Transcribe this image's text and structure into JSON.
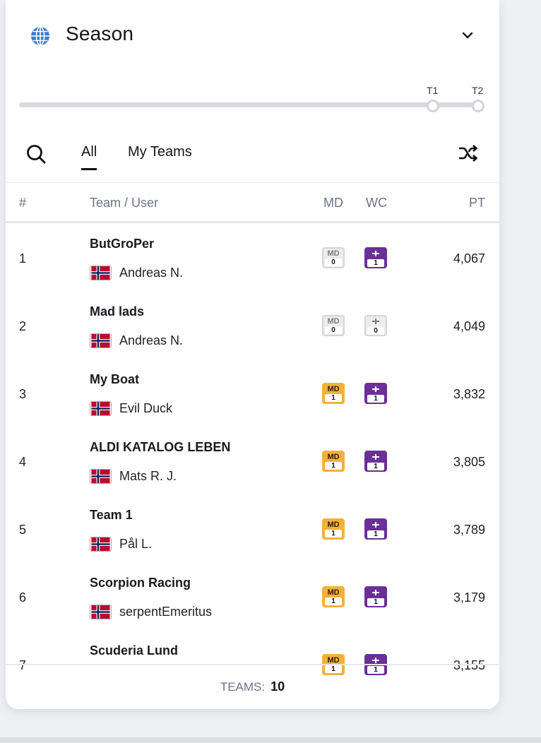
{
  "header": {
    "title": "Season",
    "globe_color": "#3e7bd6"
  },
  "slider": {
    "ticks": [
      "T1",
      "T2"
    ],
    "selected": "T2"
  },
  "tabs": [
    {
      "label": "All",
      "active": true
    },
    {
      "label": "My Teams",
      "active": false
    }
  ],
  "table": {
    "columns": {
      "rank": "#",
      "team": "Team / User",
      "md": "MD",
      "wc": "WC",
      "pt": "PT"
    },
    "chip_label_md": "MD",
    "rows": [
      {
        "rank": "1",
        "team": "ButGroPer",
        "user": "Andreas N.",
        "md": "0",
        "md_active": false,
        "wc": "1",
        "wc_active": true,
        "pt": "4,067"
      },
      {
        "rank": "2",
        "team": "Mad lads",
        "user": "Andreas N.",
        "md": "0",
        "md_active": false,
        "wc": "0",
        "wc_active": false,
        "pt": "4,049"
      },
      {
        "rank": "3",
        "team": "My Boat",
        "user": "Evil Duck",
        "md": "1",
        "md_active": true,
        "wc": "1",
        "wc_active": true,
        "pt": "3,832"
      },
      {
        "rank": "4",
        "team": "ALDI KATALOG LEBEN",
        "user": "Mats R. J.",
        "md": "1",
        "md_active": true,
        "wc": "1",
        "wc_active": true,
        "pt": "3,805"
      },
      {
        "rank": "5",
        "team": "Team 1",
        "user": "Pål L.",
        "md": "1",
        "md_active": true,
        "wc": "1",
        "wc_active": true,
        "pt": "3,789"
      },
      {
        "rank": "6",
        "team": "Scorpion Racing",
        "user": "serpentEmeritus",
        "md": "1",
        "md_active": true,
        "wc": "1",
        "wc_active": true,
        "pt": "3,179"
      },
      {
        "rank": "7",
        "team": "Scuderia Lund",
        "user": "",
        "md": "1",
        "md_active": true,
        "wc": "1",
        "wc_active": true,
        "pt": "3,155"
      }
    ]
  },
  "footer": {
    "label": "TEAMS:",
    "count": "10"
  },
  "colors": {
    "md_active": "#f3b13a",
    "wc_active": "#6b2f98",
    "flag_red": "#ba0c2f",
    "flag_blue": "#00205b"
  }
}
